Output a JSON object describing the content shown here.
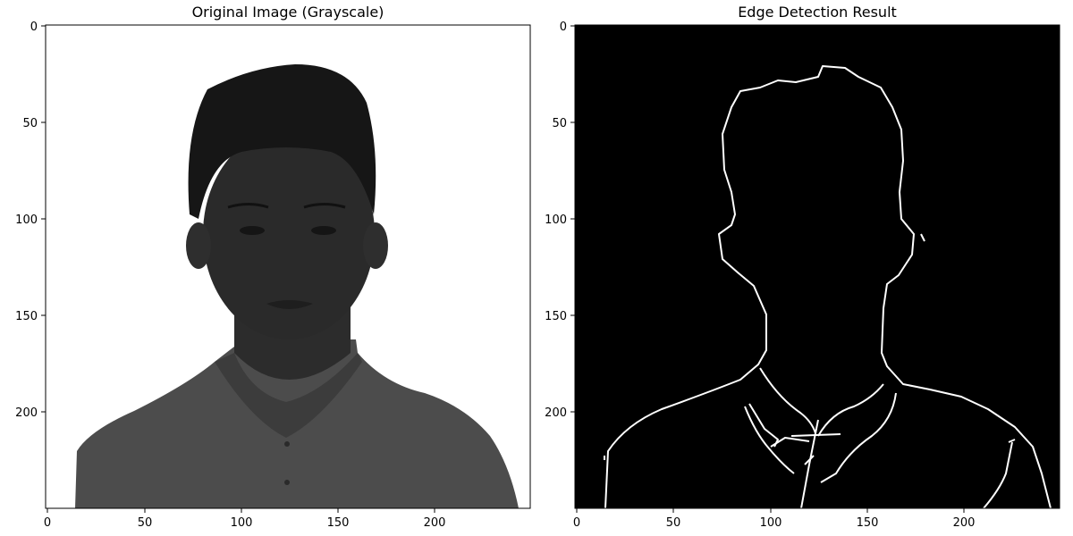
{
  "panels": [
    {
      "title": "Original Image (Grayscale)",
      "mode": "grayscale",
      "x_ticks": [
        "0",
        "50",
        "100",
        "150",
        "200"
      ],
      "y_ticks": [
        "0",
        "50",
        "100",
        "150",
        "200"
      ]
    },
    {
      "title": "Edge Detection Result",
      "mode": "edges",
      "x_ticks": [
        "0",
        "50",
        "100",
        "150",
        "200"
      ],
      "y_ticks": [
        "0",
        "50",
        "100",
        "150",
        "200"
      ]
    }
  ],
  "colors": {
    "background": "#ffffff",
    "portrait_dark": "#262626",
    "shirt": "#4a4a4a",
    "edge_bg": "#000000",
    "edge_line": "#ffffff"
  }
}
